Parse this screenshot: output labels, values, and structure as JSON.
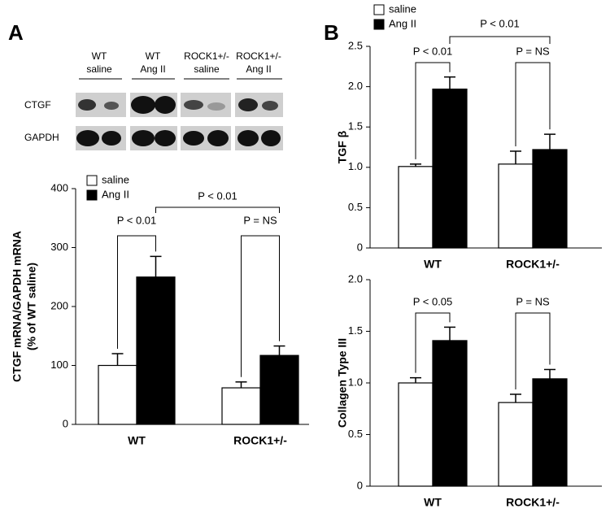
{
  "panels": [
    "A",
    "B"
  ],
  "blot": {
    "lanes": [
      [
        "WT",
        "saline"
      ],
      [
        "WT",
        "Ang II"
      ],
      [
        "ROCK1+/-",
        "saline"
      ],
      [
        "ROCK1+/-",
        "Ang II"
      ]
    ],
    "rows": [
      "CTGF",
      "GAPDH"
    ]
  },
  "chart_data": [
    {
      "type": "bar",
      "ylabel": [
        "CTGF mRNA/GAPDH mRNA",
        "(% of WT saline)"
      ],
      "categories": [
        "WT",
        "ROCK1+/-"
      ],
      "series": [
        {
          "name": "saline",
          "color": "#ffffff",
          "values": [
            100,
            62
          ],
          "errors": [
            20,
            10
          ]
        },
        {
          "name": "Ang II",
          "color": "#000000",
          "values": [
            250,
            117
          ],
          "errors": [
            35,
            16
          ]
        }
      ],
      "ylim": [
        0,
        400
      ],
      "yticks": [
        0,
        100,
        200,
        300,
        400
      ],
      "comparisons": [
        "P < 0.01",
        "P = NS"
      ],
      "between": "P < 0.01"
    },
    {
      "type": "bar",
      "ylabel": "TGF β",
      "categories": [
        "WT",
        "ROCK1+/-"
      ],
      "series": [
        {
          "name": "saline",
          "color": "#ffffff",
          "values": [
            1.01,
            1.04
          ],
          "errors": [
            0.03,
            0.16
          ]
        },
        {
          "name": "Ang II",
          "color": "#000000",
          "values": [
            1.97,
            1.22
          ],
          "errors": [
            0.15,
            0.19
          ]
        }
      ],
      "ylim": [
        0,
        2.5
      ],
      "yticks": [
        0,
        0.5,
        {
          "value": 1,
          "label": "1.0"
        },
        1.5,
        {
          "value": 2,
          "label": "2.0"
        },
        2.5
      ],
      "comparisons": [
        "P < 0.01",
        "P = NS"
      ],
      "between": "P < 0.01"
    },
    {
      "type": "bar",
      "ylabel": "Collagen Type III",
      "categories": [
        "WT",
        "ROCK1+/-"
      ],
      "series": [
        {
          "color": "#ffffff",
          "values": [
            1.0,
            0.81
          ],
          "errors": [
            0.05,
            0.08
          ]
        },
        {
          "color": "#000000",
          "values": [
            1.41,
            1.04
          ],
          "errors": [
            0.13,
            0.09
          ]
        }
      ],
      "ylim": [
        0,
        2
      ],
      "yticks": [
        0,
        0.5,
        {
          "value": 1,
          "label": "1.0"
        },
        1.5,
        {
          "value": 2,
          "label": "2.0"
        }
      ],
      "comparisons": [
        "P < 0.05",
        "P = NS"
      ]
    }
  ]
}
